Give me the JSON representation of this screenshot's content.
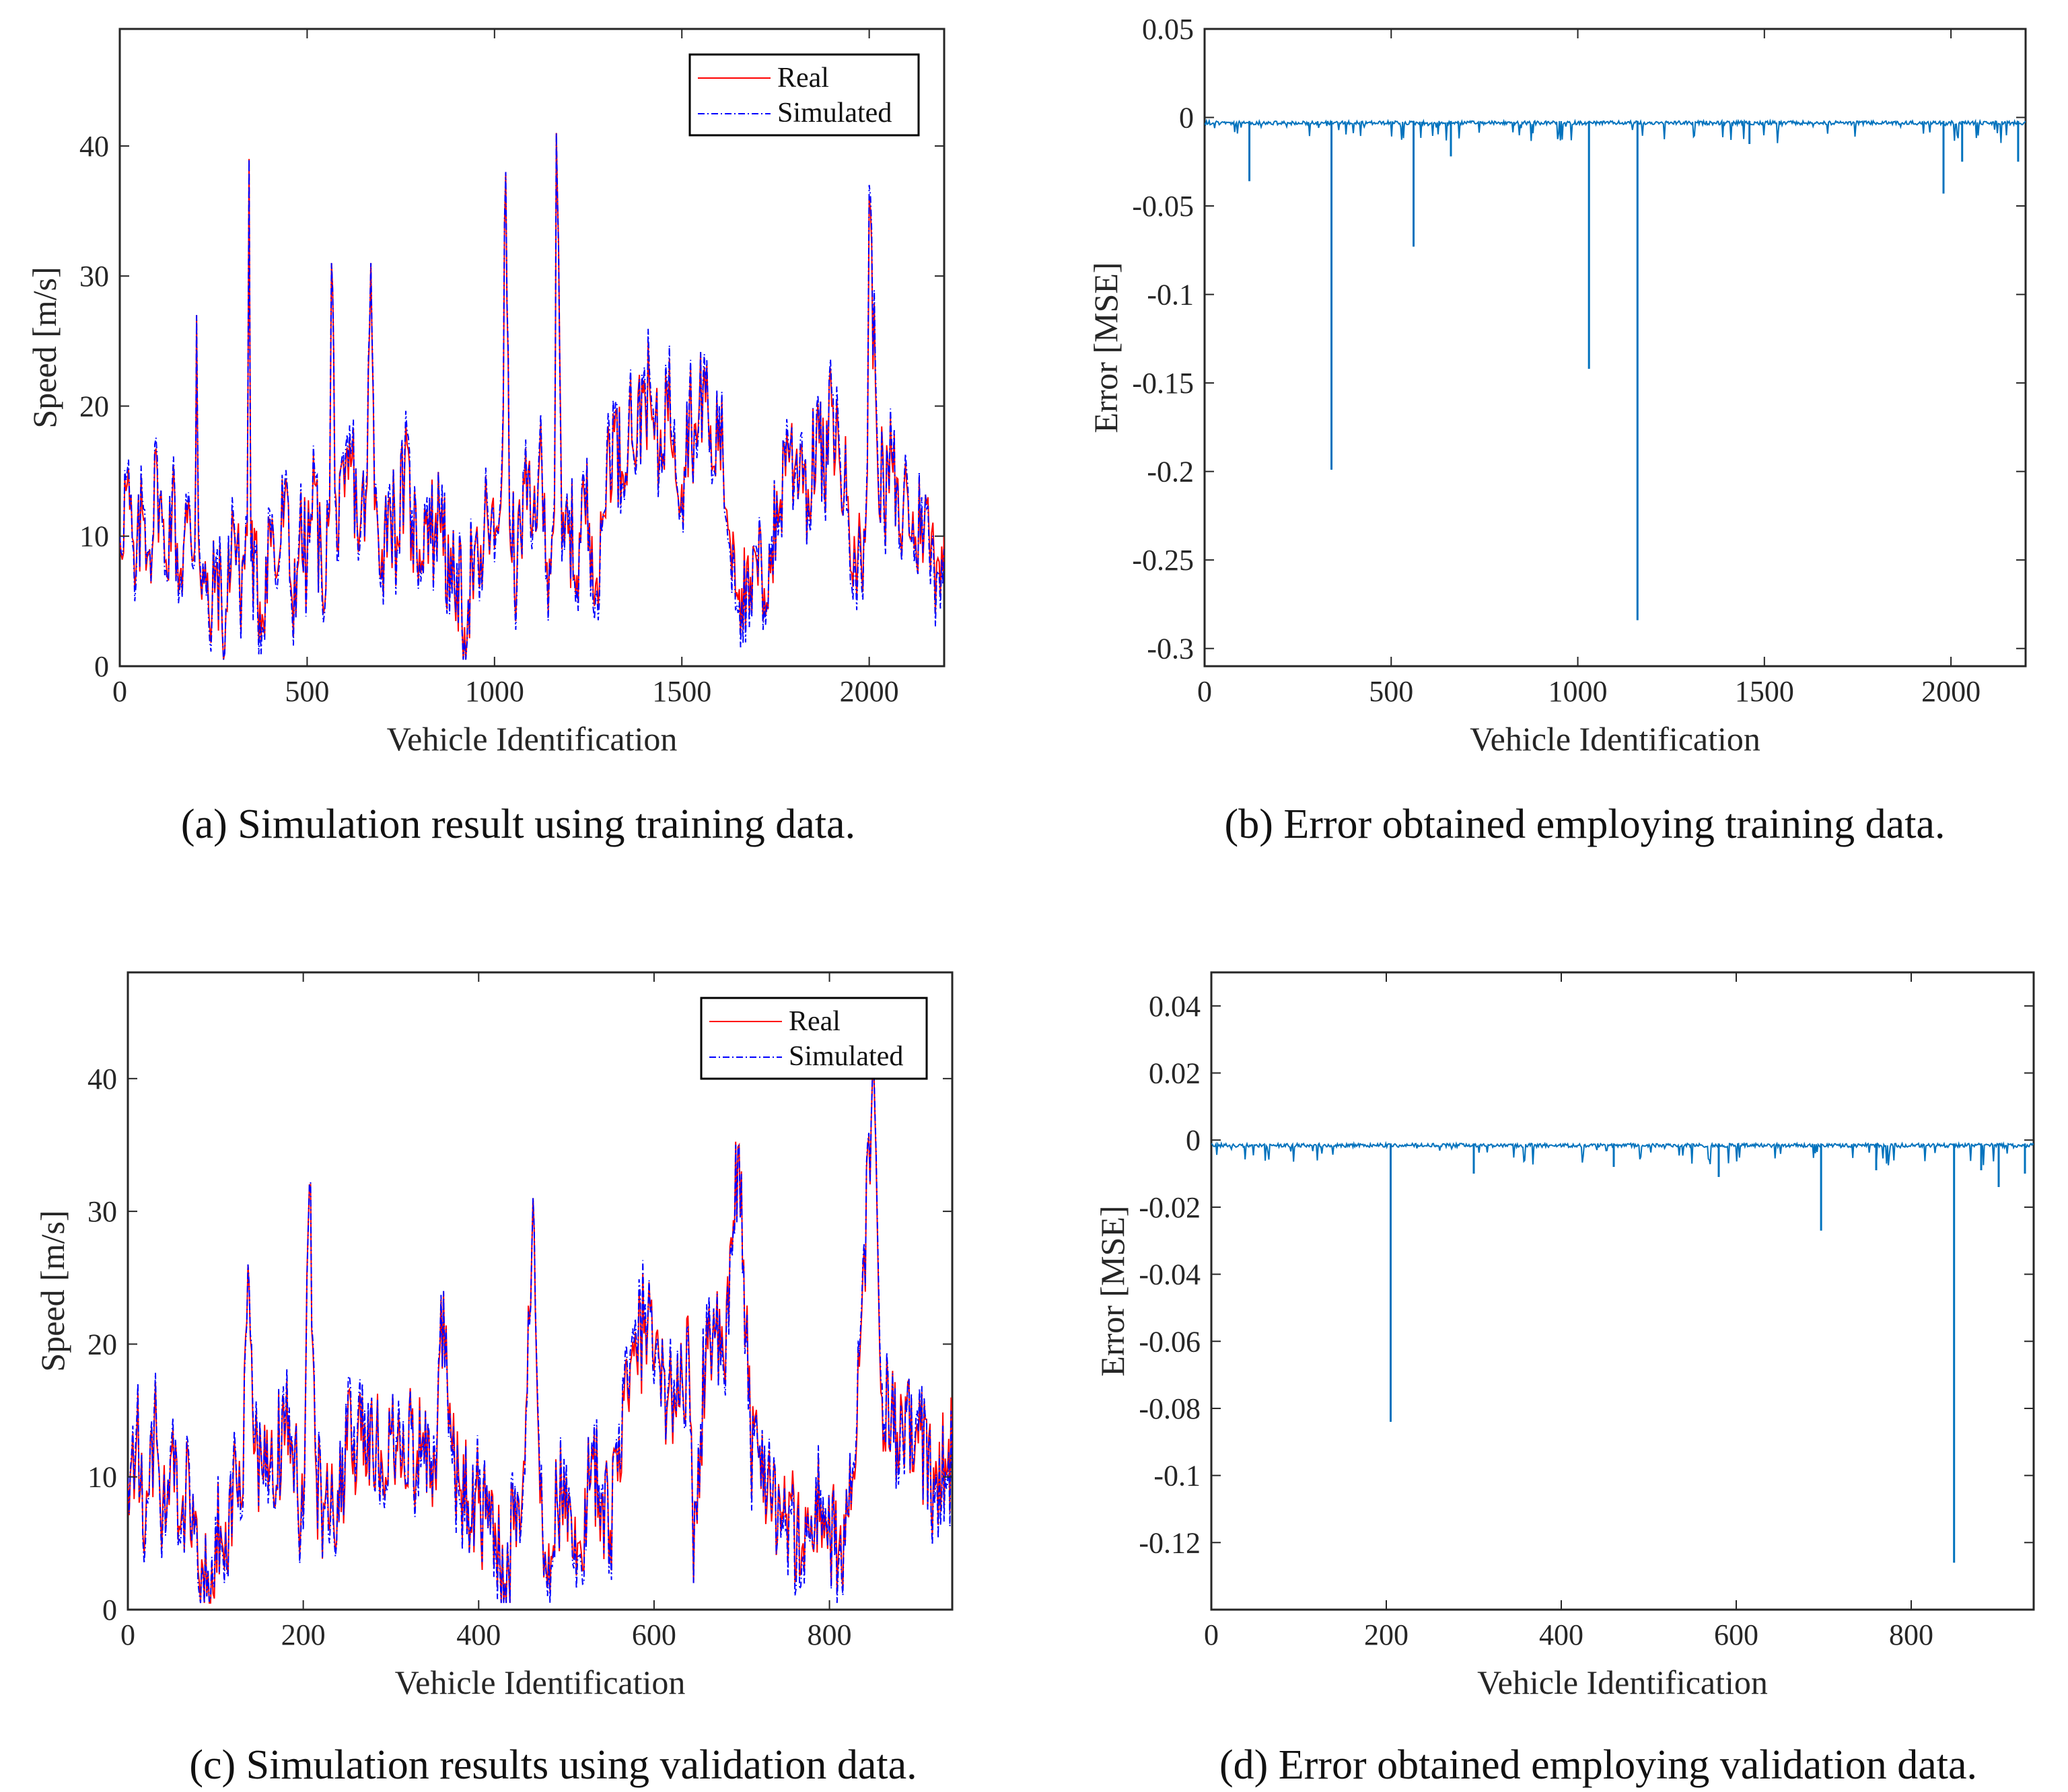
{
  "colors": {
    "real": "#ff0000",
    "simulated": "#0000ff",
    "error": "#0072bd",
    "axis": "#262626"
  },
  "chart_data": [
    {
      "id": "a",
      "type": "line",
      "caption": "(a) Simulation result using training data.",
      "xlabel": "Vehicle Identification",
      "ylabel_text": "Speed",
      "ylabel_unit": "[m/s]",
      "xlim": [
        0,
        2200
      ],
      "ylim": [
        0,
        49
      ],
      "xticks": [
        0,
        500,
        1000,
        1500,
        2000
      ],
      "xtick_labels": [
        "0",
        "500",
        "1000",
        "1500",
        "2000"
      ],
      "yticks": [
        0,
        10,
        20,
        30,
        40
      ],
      "ytick_labels": [
        "0",
        "10",
        "20",
        "30",
        "40"
      ],
      "legend": {
        "position": "top-right",
        "entries": [
          "Real",
          "Simulated"
        ]
      },
      "series": [
        {
          "name": "Real",
          "x": [
            0,
            20,
            40,
            60,
            80,
            100,
            120,
            140,
            160,
            180,
            200,
            205,
            210,
            240,
            260,
            280,
            300,
            320,
            340,
            345,
            350,
            380,
            400,
            420,
            440,
            460,
            480,
            500,
            520,
            540,
            560,
            565,
            580,
            600,
            620,
            640,
            660,
            670,
            680,
            700,
            720,
            740,
            760,
            780,
            800,
            820,
            840,
            860,
            880,
            900,
            920,
            940,
            960,
            980,
            1000,
            1020,
            1030,
            1040,
            1060,
            1080,
            1100,
            1120,
            1140,
            1160,
            1165,
            1180,
            1200,
            1220,
            1240,
            1260,
            1280,
            1300,
            1320,
            1340,
            1360,
            1380,
            1400,
            1420,
            1440,
            1460,
            1480,
            1500,
            1520,
            1540,
            1560,
            1580,
            1600,
            1620,
            1640,
            1660,
            1680,
            1700,
            1720,
            1740,
            1760,
            1780,
            1800,
            1820,
            1840,
            1860,
            1880,
            1900,
            1920,
            1940,
            1960,
            1980,
            1995,
            2000,
            2020,
            2040,
            2060,
            2080,
            2100,
            2120,
            2140,
            2160,
            2180,
            2200
          ],
          "values": [
            10,
            14,
            6,
            12,
            9,
            15,
            8,
            13,
            7,
            11,
            9,
            27,
            10,
            3,
            8,
            1,
            12,
            6,
            10,
            39,
            9,
            4,
            11,
            7,
            13,
            5,
            10,
            8,
            14,
            6,
            12,
            31,
            9,
            13,
            16,
            10,
            14,
            31,
            12,
            9,
            13,
            10,
            15,
            11,
            9,
            12,
            10,
            13,
            5,
            7,
            3,
            8,
            6,
            12,
            9,
            15,
            38,
            11,
            7,
            14,
            10,
            16,
            8,
            12,
            41,
            9,
            11,
            7,
            13,
            10,
            6,
            16,
            18,
            15,
            20,
            17,
            22,
            19,
            16,
            21,
            18,
            14,
            20,
            17,
            23,
            15,
            19,
            12,
            9,
            6,
            4,
            8,
            6,
            9,
            12,
            18,
            15,
            17,
            12,
            19,
            14,
            20,
            16,
            13,
            10,
            7,
            15,
            36,
            18,
            12,
            16,
            10,
            14,
            9,
            12,
            10,
            8,
            10
          ]
        },
        {
          "name": "Simulated",
          "x": [
            0,
            20,
            40,
            60,
            80,
            100,
            120,
            140,
            160,
            180,
            200,
            205,
            210,
            240,
            260,
            280,
            300,
            320,
            340,
            345,
            350,
            380,
            400,
            420,
            440,
            460,
            480,
            500,
            520,
            540,
            560,
            565,
            580,
            600,
            620,
            640,
            660,
            670,
            680,
            700,
            720,
            740,
            760,
            780,
            800,
            820,
            840,
            860,
            880,
            900,
            920,
            940,
            960,
            980,
            1000,
            1020,
            1030,
            1040,
            1060,
            1080,
            1100,
            1120,
            1140,
            1160,
            1165,
            1180,
            1200,
            1220,
            1240,
            1260,
            1280,
            1300,
            1320,
            1340,
            1360,
            1380,
            1400,
            1420,
            1440,
            1460,
            1480,
            1500,
            1520,
            1540,
            1560,
            1580,
            1600,
            1620,
            1640,
            1660,
            1680,
            1700,
            1720,
            1740,
            1760,
            1780,
            1800,
            1820,
            1840,
            1860,
            1880,
            1900,
            1920,
            1940,
            1960,
            1980,
            1995,
            2000,
            2020,
            2040,
            2060,
            2080,
            2100,
            2120,
            2140,
            2160,
            2180,
            2200
          ],
          "values": [
            10,
            15,
            5,
            13,
            9,
            16,
            7,
            14,
            6,
            12,
            8,
            27,
            11,
            2,
            9,
            1,
            13,
            5,
            11,
            39,
            8,
            3,
            12,
            6,
            14,
            4,
            11,
            7,
            15,
            5,
            13,
            31,
            8,
            14,
            17,
            9,
            15,
            31,
            13,
            8,
            14,
            9,
            16,
            12,
            8,
            13,
            9,
            14,
            4,
            8,
            2,
            9,
            5,
            13,
            8,
            16,
            38,
            12,
            6,
            15,
            9,
            17,
            7,
            13,
            41,
            8,
            12,
            6,
            14,
            9,
            5,
            17,
            19,
            14,
            21,
            16,
            23,
            20,
            15,
            22,
            19,
            13,
            21,
            16,
            24,
            14,
            20,
            11,
            8,
            5,
            3,
            9,
            5,
            10,
            11,
            19,
            14,
            18,
            11,
            20,
            13,
            21,
            17,
            12,
            9,
            6,
            16,
            37,
            19,
            11,
            17,
            9,
            15,
            8,
            13,
            9,
            7,
            9
          ]
        }
      ]
    },
    {
      "id": "b",
      "type": "line",
      "caption": "(b) Error obtained employing training data.",
      "xlabel": "Vehicle Identification",
      "ylabel_text": "Error [MSE]",
      "xlim": [
        0,
        2200
      ],
      "ylim": [
        -0.31,
        0.05
      ],
      "xticks": [
        0,
        500,
        1000,
        1500,
        2000
      ],
      "xtick_labels": [
        "0",
        "500",
        "1000",
        "1500",
        "2000"
      ],
      "yticks": [
        0.05,
        0,
        -0.05,
        -0.1,
        -0.15,
        -0.2,
        -0.25,
        -0.3
      ],
      "ytick_labels": [
        "0.05",
        "0",
        "-0.05",
        "-0.1",
        "-0.15",
        "-0.2",
        "-0.25",
        "-0.3"
      ],
      "baseline": -0.002,
      "spikes": [
        {
          "x": 120,
          "value": -0.036
        },
        {
          "x": 340,
          "value": -0.199
        },
        {
          "x": 560,
          "value": -0.073
        },
        {
          "x": 660,
          "value": -0.022
        },
        {
          "x": 1030,
          "value": -0.142
        },
        {
          "x": 1160,
          "value": -0.284
        },
        {
          "x": 1460,
          "value": -0.015
        },
        {
          "x": 1980,
          "value": -0.043
        },
        {
          "x": 2030,
          "value": -0.025
        },
        {
          "x": 2180,
          "value": -0.025
        }
      ]
    },
    {
      "id": "c",
      "type": "line",
      "caption": "(c) Simulation results using validation data.",
      "xlabel": "Vehicle Identification",
      "ylabel_text": "Speed",
      "ylabel_unit": "[m/s]",
      "xlim": [
        0,
        940
      ],
      "ylim": [
        0,
        48
      ],
      "xticks": [
        0,
        200,
        400,
        600,
        800
      ],
      "xtick_labels": [
        "0",
        "200",
        "400",
        "600",
        "800"
      ],
      "yticks": [
        0,
        10,
        20,
        30,
        40
      ],
      "ytick_labels": [
        "0",
        "10",
        "20",
        "30",
        "40"
      ],
      "legend": {
        "position": "top-right",
        "entries": [
          "Real",
          "Simulated"
        ]
      },
      "series": [
        {
          "name": "Real",
          "x": [
            0,
            10,
            20,
            30,
            40,
            50,
            60,
            70,
            80,
            90,
            100,
            110,
            120,
            130,
            137,
            145,
            160,
            180,
            200,
            207,
            215,
            230,
            250,
            270,
            290,
            310,
            330,
            350,
            360,
            370,
            380,
            400,
            420,
            430,
            440,
            450,
            462,
            470,
            480,
            500,
            510,
            520,
            525,
            540,
            550,
            560,
            570,
            580,
            590,
            600,
            620,
            640,
            645,
            660,
            680,
            697,
            710,
            730,
            750,
            770,
            790,
            810,
            830,
            849,
            860,
            880,
            900,
            920,
            940
          ],
          "values": [
            10,
            13,
            6,
            14,
            8,
            12,
            6,
            10,
            3,
            1,
            6,
            3,
            10,
            8,
            26,
            12,
            9,
            14,
            7,
            32,
            10,
            6,
            12,
            14,
            11,
            13,
            12,
            11,
            24,
            12,
            9,
            8,
            5,
            2,
            6,
            9,
            31,
            8,
            5,
            10,
            7,
            3,
            13,
            8,
            6,
            13,
            16,
            19,
            22,
            18,
            16,
            19,
            2,
            22,
            18,
            35,
            13,
            10,
            7,
            5,
            8,
            4,
            11,
            40,
            16,
            12,
            14,
            9,
            12
          ]
        },
        {
          "name": "Simulated",
          "x": [
            0,
            10,
            20,
            30,
            40,
            50,
            60,
            70,
            80,
            90,
            100,
            110,
            120,
            130,
            137,
            145,
            160,
            180,
            200,
            207,
            215,
            230,
            250,
            270,
            290,
            310,
            330,
            350,
            360,
            370,
            380,
            400,
            420,
            430,
            440,
            450,
            462,
            470,
            480,
            500,
            510,
            520,
            525,
            540,
            550,
            560,
            570,
            580,
            590,
            600,
            620,
            640,
            645,
            660,
            680,
            697,
            710,
            730,
            750,
            770,
            790,
            810,
            830,
            849,
            860,
            880,
            900,
            920,
            940
          ],
          "values": [
            10,
            14,
            5,
            15,
            7,
            13,
            5,
            11,
            2,
            1,
            7,
            2,
            11,
            7,
            26,
            13,
            8,
            15,
            6,
            32,
            11,
            5,
            13,
            15,
            10,
            14,
            11,
            12,
            24,
            11,
            8,
            9,
            4,
            2,
            7,
            8,
            31,
            9,
            4,
            11,
            6,
            2,
            13,
            9,
            5,
            14,
            17,
            20,
            23,
            17,
            17,
            18,
            2,
            23,
            17,
            35,
            12,
            11,
            6,
            4,
            9,
            3,
            12,
            40,
            17,
            11,
            15,
            8,
            11
          ]
        }
      ]
    },
    {
      "id": "d",
      "type": "line",
      "caption": "(d) Error obtained employing validation data.",
      "xlabel": "Vehicle Identification",
      "ylabel_text": "Error [MSE]",
      "xlim": [
        0,
        940
      ],
      "ylim": [
        -0.14,
        0.05
      ],
      "xticks": [
        0,
        200,
        400,
        600,
        800
      ],
      "xtick_labels": [
        "0",
        "200",
        "400",
        "600",
        "800"
      ],
      "yticks": [
        0.04,
        0.02,
        0,
        -0.02,
        -0.04,
        -0.06,
        -0.08,
        -0.1,
        -0.12
      ],
      "ytick_labels": [
        "0.04",
        "0.02",
        "0",
        "-0.02",
        "-0.04",
        "-0.06",
        "-0.08",
        "-0.1",
        "-0.12"
      ],
      "baseline": -0.001,
      "spikes": [
        {
          "x": 205,
          "value": -0.084
        },
        {
          "x": 300,
          "value": -0.01
        },
        {
          "x": 460,
          "value": -0.008
        },
        {
          "x": 580,
          "value": -0.011
        },
        {
          "x": 697,
          "value": -0.027
        },
        {
          "x": 760,
          "value": -0.009
        },
        {
          "x": 849,
          "value": -0.126
        },
        {
          "x": 880,
          "value": -0.009
        },
        {
          "x": 900,
          "value": -0.014
        },
        {
          "x": 930,
          "value": -0.01
        }
      ]
    }
  ]
}
